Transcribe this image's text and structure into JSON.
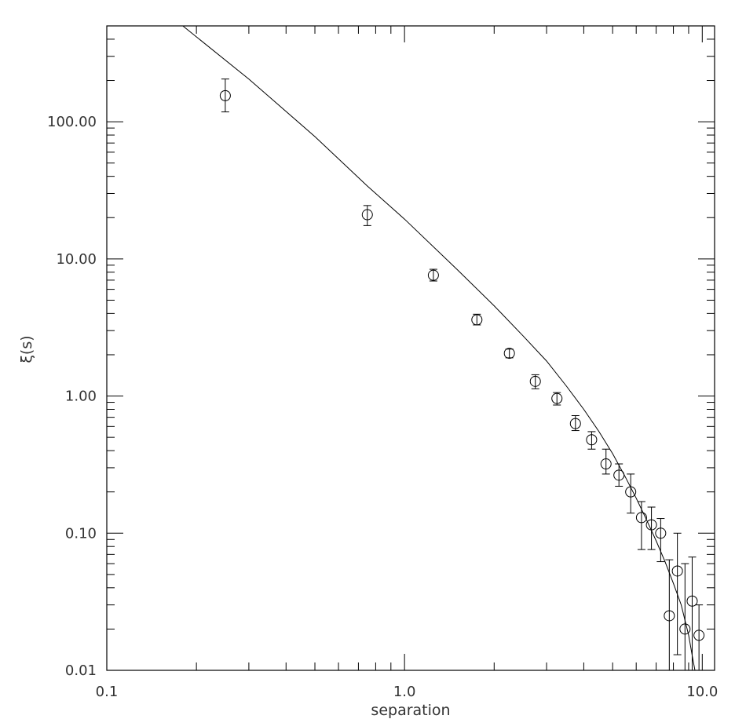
{
  "chart_data": {
    "type": "scatter",
    "xlabel": "separation",
    "ylabel": "ξ(s)",
    "x_scale": "log",
    "y_scale": "log",
    "xlim": [
      0.1,
      11.0
    ],
    "ylim": [
      0.01,
      500
    ],
    "x_ticks": [
      0.1,
      1.0,
      10.0
    ],
    "x_tick_labels": [
      "0.1",
      "1.0",
      "10.0"
    ],
    "y_ticks": [
      0.01,
      0.1,
      1.0,
      10.0,
      100.0
    ],
    "y_tick_labels": [
      "0.01",
      "0.10",
      "1.00",
      "10.00",
      "100.00"
    ],
    "grid": false,
    "legend": "none",
    "series": [
      {
        "marker": "open-circle",
        "points": [
          {
            "x": 0.25,
            "y": 155,
            "err_low": 118,
            "err_high": 205
          },
          {
            "x": 0.75,
            "y": 21,
            "err_low": 17.5,
            "err_high": 24.5
          },
          {
            "x": 1.25,
            "y": 7.6,
            "err_low": 6.9,
            "err_high": 8.4
          },
          {
            "x": 1.75,
            "y": 3.6,
            "err_low": 3.3,
            "err_high": 3.95
          },
          {
            "x": 2.25,
            "y": 2.05,
            "err_low": 1.9,
            "err_high": 2.2
          },
          {
            "x": 2.75,
            "y": 1.28,
            "err_low": 1.13,
            "err_high": 1.43
          },
          {
            "x": 3.25,
            "y": 0.96,
            "err_low": 0.86,
            "err_high": 1.06
          },
          {
            "x": 3.75,
            "y": 0.63,
            "err_low": 0.56,
            "err_high": 0.72
          },
          {
            "x": 4.25,
            "y": 0.48,
            "err_low": 0.41,
            "err_high": 0.55
          },
          {
            "x": 4.75,
            "y": 0.32,
            "err_low": 0.27,
            "err_high": 0.41
          },
          {
            "x": 5.25,
            "y": 0.265,
            "err_low": 0.22,
            "err_high": 0.32
          },
          {
            "x": 5.75,
            "y": 0.2,
            "err_low": 0.14,
            "err_high": 0.27
          },
          {
            "x": 6.25,
            "y": 0.13,
            "err_low": 0.076,
            "err_high": 0.17
          },
          {
            "x": 6.75,
            "y": 0.115,
            "err_low": 0.076,
            "err_high": 0.155
          },
          {
            "x": 7.25,
            "y": 0.1,
            "err_low": 0.062,
            "err_high": 0.128
          },
          {
            "x": 7.75,
            "y": 0.025,
            "err_low": 0.01,
            "err_high": 0.064
          },
          {
            "x": 8.25,
            "y": 0.053,
            "err_low": 0.013,
            "err_high": 0.1
          },
          {
            "x": 8.75,
            "y": 0.02,
            "err_low": 0.01,
            "err_high": 0.06
          },
          {
            "x": 9.25,
            "y": 0.032,
            "err_low": 0.01,
            "err_high": 0.067
          },
          {
            "x": 9.75,
            "y": 0.018,
            "err_low": 0.01,
            "err_high": 0.03
          }
        ]
      }
    ],
    "fit_curve": {
      "style": "solid-line",
      "points": [
        {
          "x": 0.18,
          "y": 500
        },
        {
          "x": 0.3,
          "y": 205
        },
        {
          "x": 0.5,
          "y": 78
        },
        {
          "x": 0.75,
          "y": 34
        },
        {
          "x": 1.0,
          "y": 19.5
        },
        {
          "x": 1.5,
          "y": 8.4
        },
        {
          "x": 2.0,
          "y": 4.55
        },
        {
          "x": 2.5,
          "y": 2.75
        },
        {
          "x": 3.0,
          "y": 1.8
        },
        {
          "x": 3.5,
          "y": 1.18
        },
        {
          "x": 4.0,
          "y": 0.8
        },
        {
          "x": 4.5,
          "y": 0.55
        },
        {
          "x": 5.0,
          "y": 0.38
        },
        {
          "x": 5.5,
          "y": 0.26
        },
        {
          "x": 6.0,
          "y": 0.18
        },
        {
          "x": 6.5,
          "y": 0.125
        },
        {
          "x": 7.0,
          "y": 0.088
        },
        {
          "x": 7.5,
          "y": 0.062
        },
        {
          "x": 8.0,
          "y": 0.043
        },
        {
          "x": 8.5,
          "y": 0.03
        },
        {
          "x": 9.0,
          "y": 0.018
        },
        {
          "x": 9.3,
          "y": 0.012
        },
        {
          "x": 9.45,
          "y": 0.01
        }
      ]
    }
  }
}
